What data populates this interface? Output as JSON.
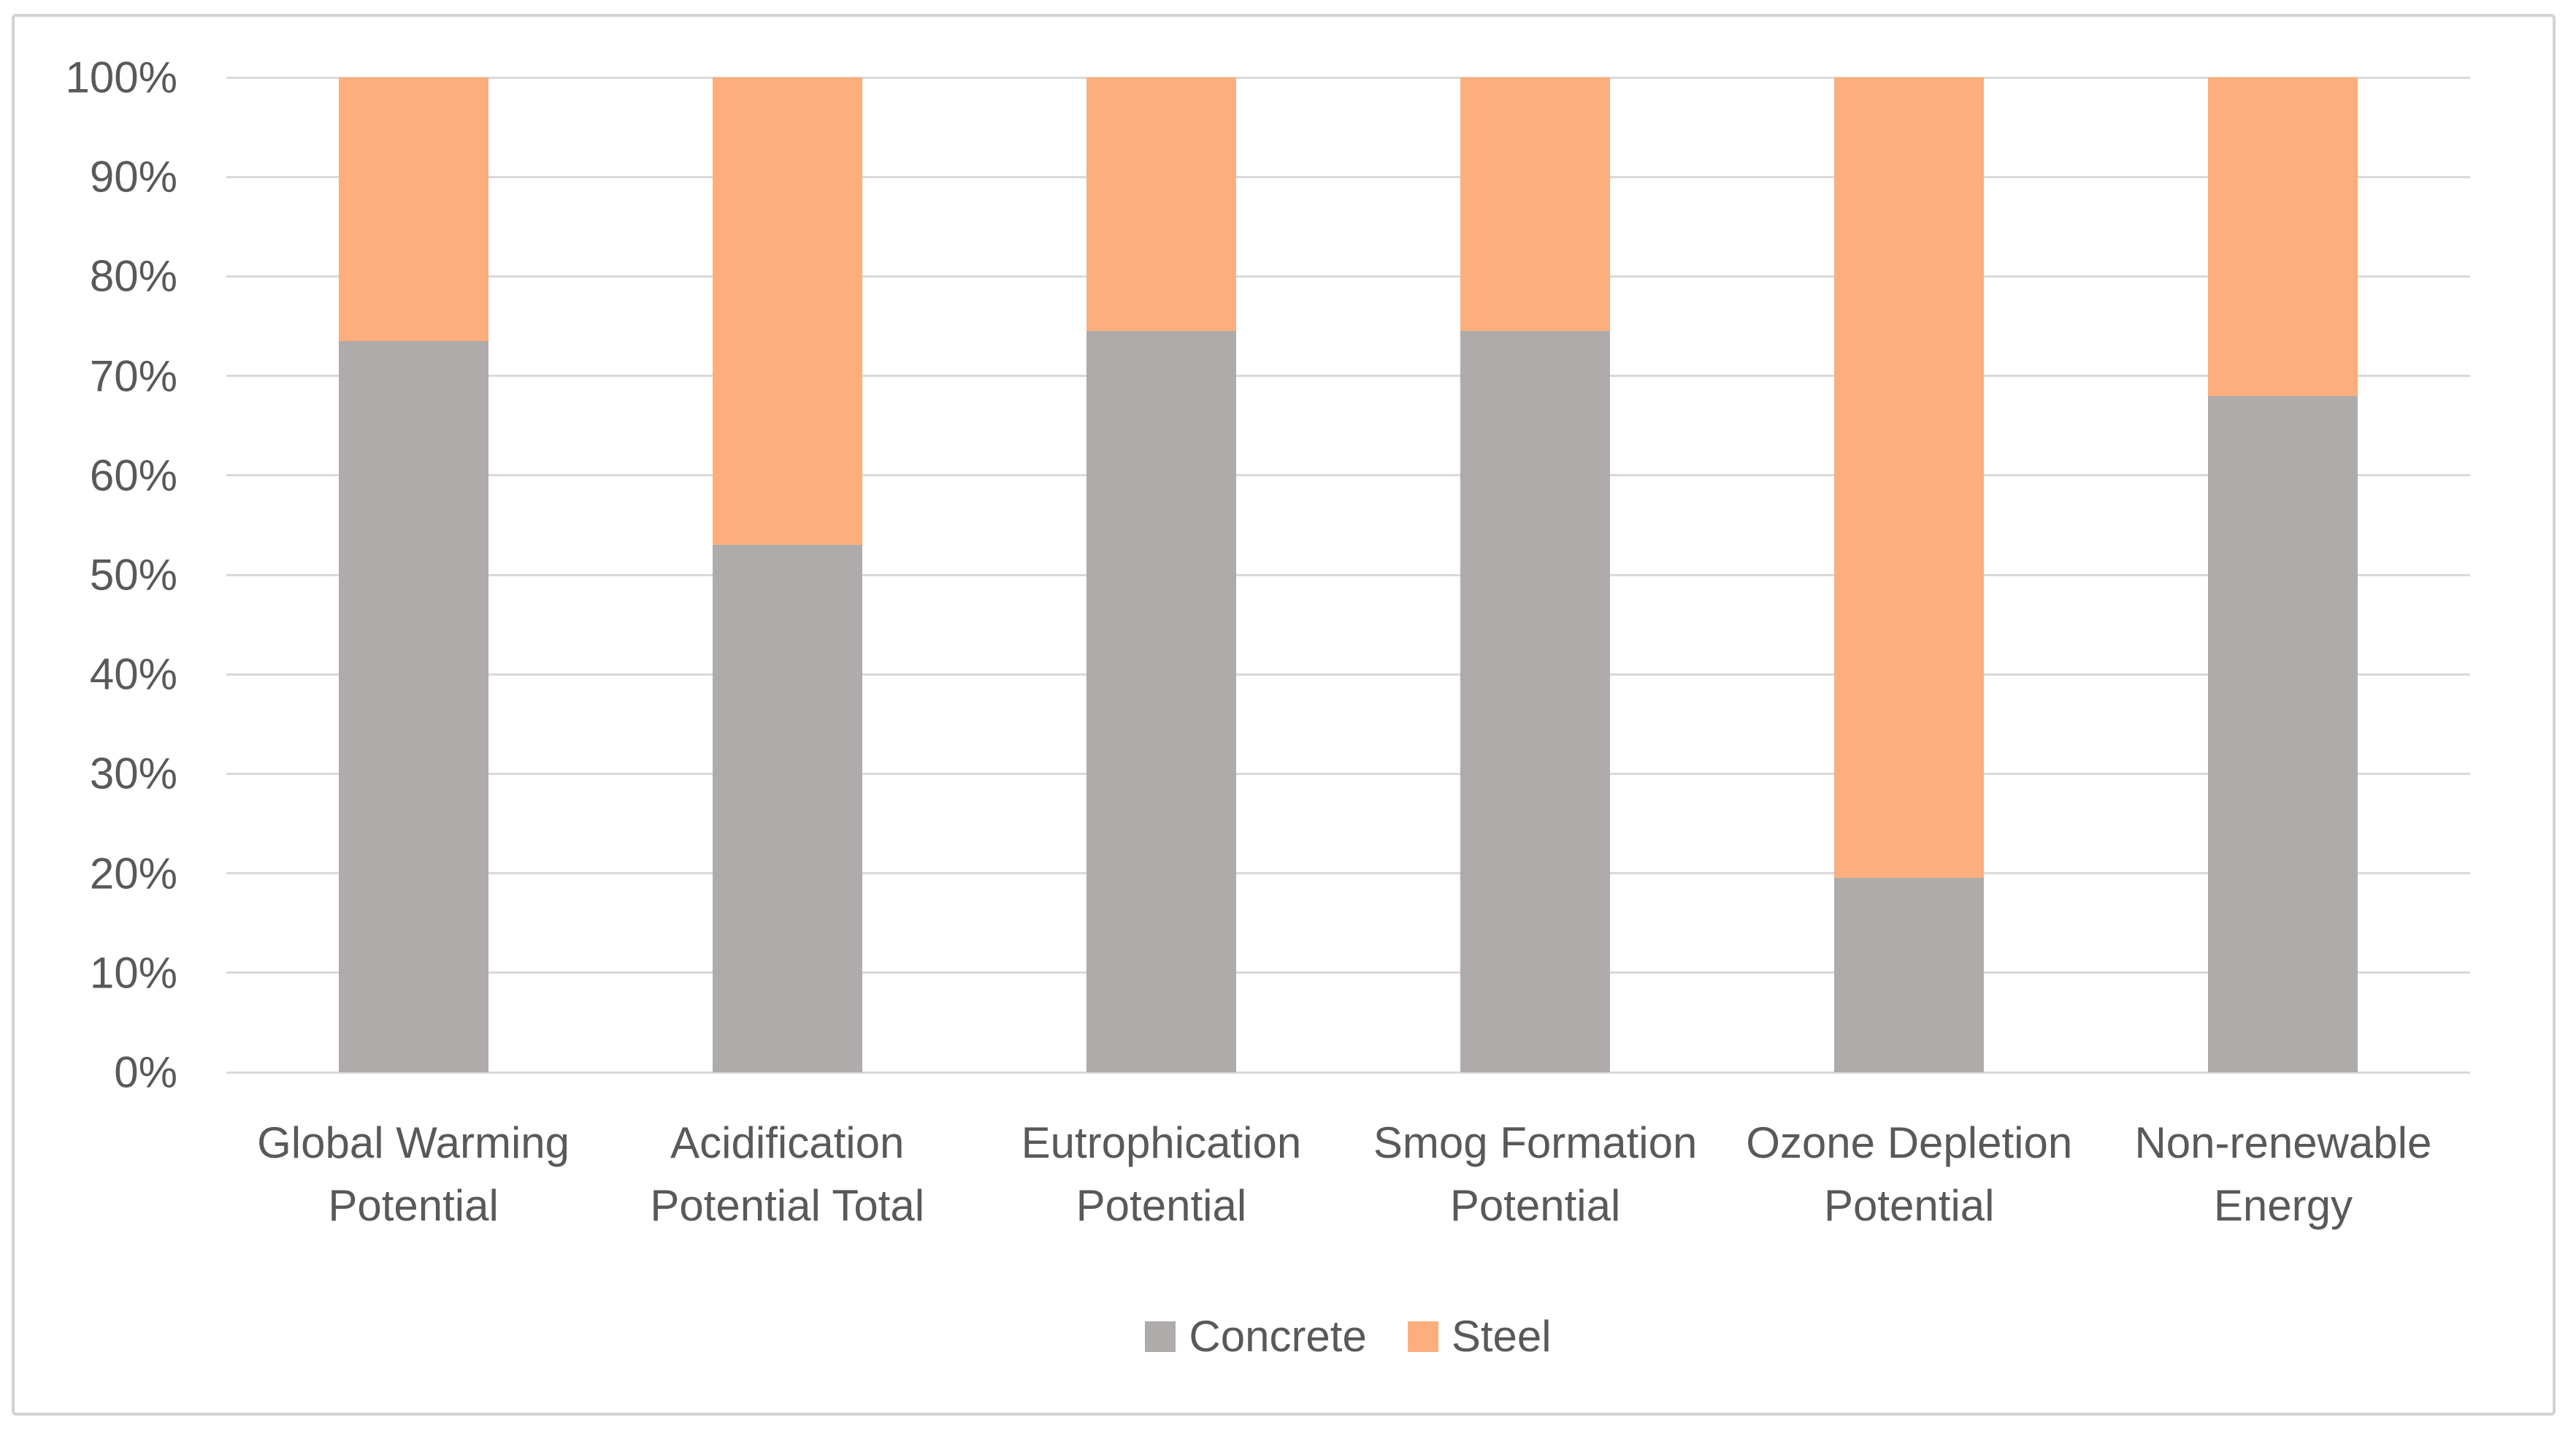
{
  "chart_data": {
    "type": "bar",
    "subtype": "percent-stacked-column",
    "title": "",
    "xlabel": "",
    "ylabel": "",
    "categories": [
      "Global Warming Potential",
      "Acidification Potential Total",
      "Eutrophication Potential",
      "Smog Formation Potential",
      "Ozone Depletion Potential",
      "Non-renewable Energy"
    ],
    "series": [
      {
        "name": "Concrete",
        "color": "#afabaa",
        "values": [
          73.5,
          53,
          74.5,
          74.5,
          19.5,
          68
        ]
      },
      {
        "name": "Steel",
        "color": "#fcae7c",
        "values": [
          26.5,
          47,
          25.5,
          25.5,
          80.5,
          32
        ]
      }
    ],
    "ylim": [
      0,
      100
    ],
    "yticks": [
      "0%",
      "10%",
      "20%",
      "30%",
      "40%",
      "50%",
      "60%",
      "70%",
      "80%",
      "90%",
      "100%"
    ],
    "grid": true,
    "gridline_color": "#d9d9d9",
    "axis_text_color": "#595959",
    "legend_position": "bottom",
    "frame_border_color": "#d2d2d2",
    "background_color": "#ffffff"
  }
}
